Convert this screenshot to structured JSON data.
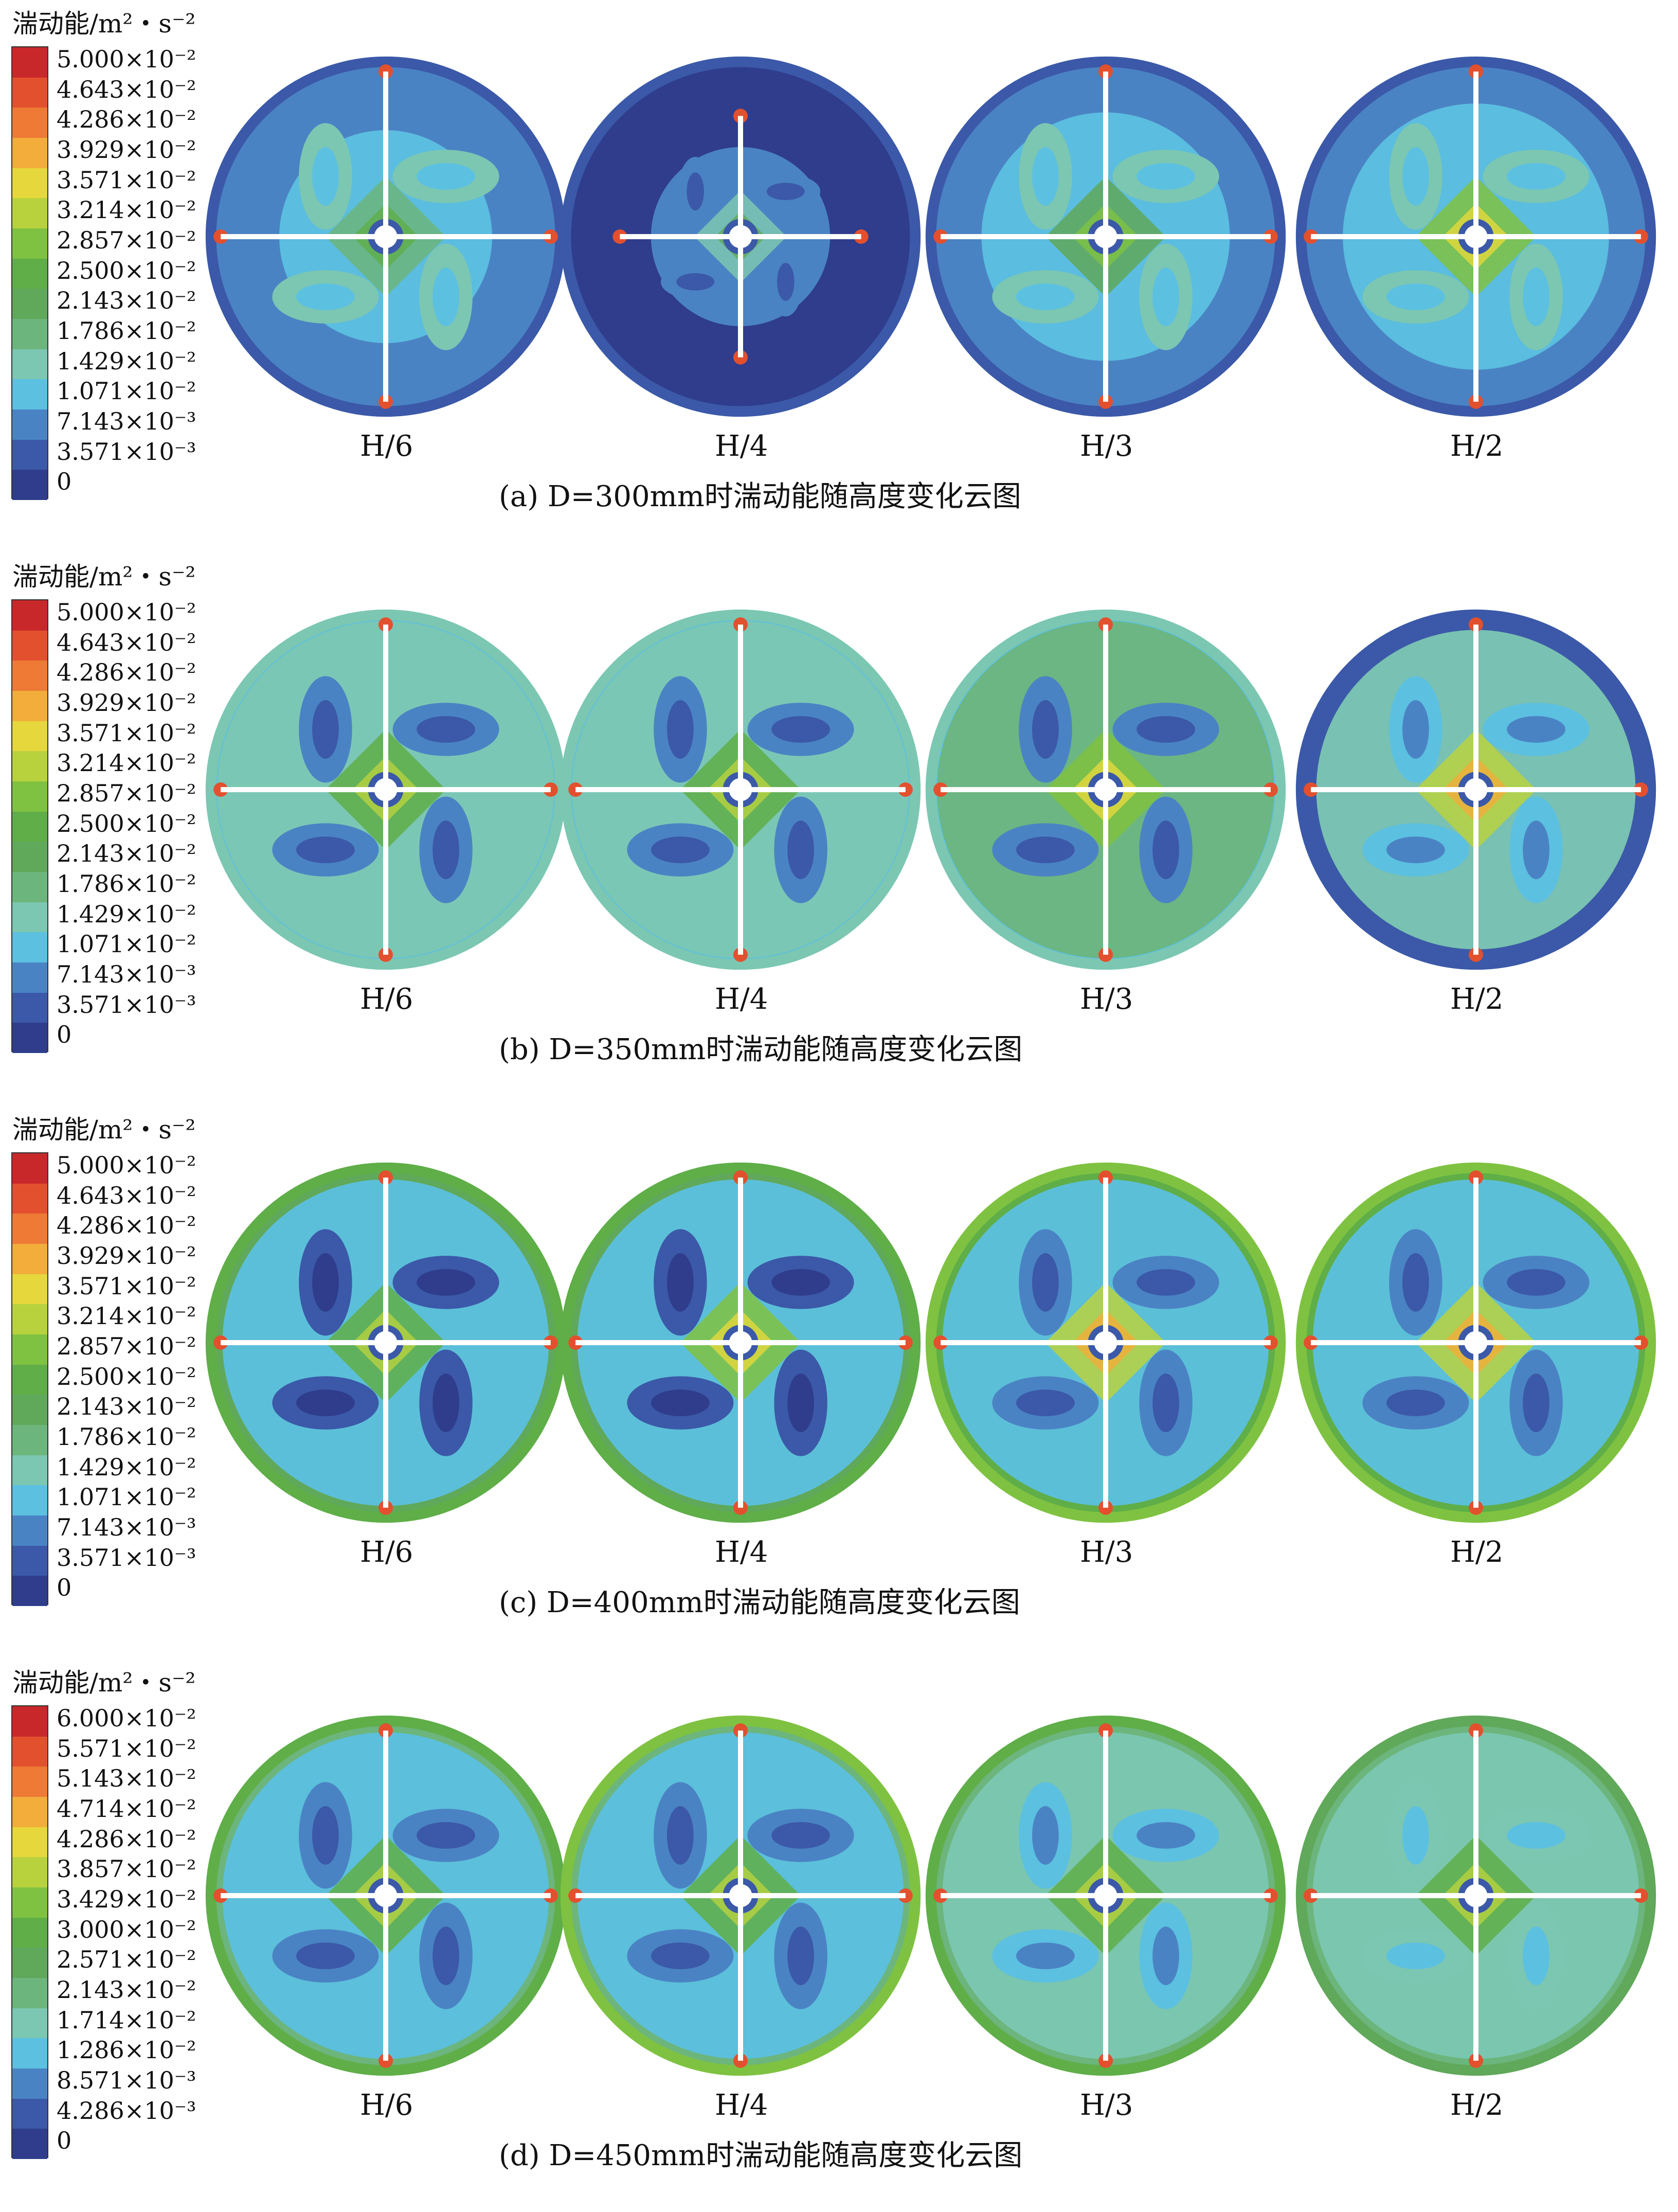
{
  "legend_title": "湍动能/m²・s⁻²",
  "panels": [
    {
      "caption": "(a) D=300mm时湍动能随高度变化云图",
      "legend_ticks": [
        "5.000×10⁻²",
        "4.643×10⁻²",
        "4.286×10⁻²",
        "3.929×10⁻²",
        "3.571×10⁻²",
        "3.214×10⁻²",
        "2.857×10⁻²",
        "2.500×10⁻²",
        "2.143×10⁻²",
        "1.786×10⁻²",
        "1.429×10⁻²",
        "1.071×10⁻²",
        "7.143×10⁻³",
        "3.571×10⁻³",
        "0"
      ],
      "heights": [
        "H/6",
        "H/4",
        "H/3",
        "H/2"
      ]
    },
    {
      "caption": "(b) D=350mm时湍动能随高度变化云图",
      "legend_ticks": [
        "5.000×10⁻²",
        "4.643×10⁻²",
        "4.286×10⁻²",
        "3.929×10⁻²",
        "3.571×10⁻²",
        "3.214×10⁻²",
        "2.857×10⁻²",
        "2.500×10⁻²",
        "2.143×10⁻²",
        "1.786×10⁻²",
        "1.429×10⁻²",
        "1.071×10⁻²",
        "7.143×10⁻³",
        "3.571×10⁻³",
        "0"
      ],
      "heights": [
        "H/6",
        "H/4",
        "H/3",
        "H/2"
      ]
    },
    {
      "caption": "(c) D=400mm时湍动能随高度变化云图",
      "legend_ticks": [
        "5.000×10⁻²",
        "4.643×10⁻²",
        "4.286×10⁻²",
        "3.929×10⁻²",
        "3.571×10⁻²",
        "3.214×10⁻²",
        "2.857×10⁻²",
        "2.500×10⁻²",
        "2.143×10⁻²",
        "1.786×10⁻²",
        "1.429×10⁻²",
        "1.071×10⁻²",
        "7.143×10⁻³",
        "3.571×10⁻³",
        "0"
      ],
      "heights": [
        "H/6",
        "H/4",
        "H/3",
        "H/2"
      ]
    },
    {
      "caption": "(d) D=450mm时湍动能随高度变化云图",
      "legend_ticks": [
        "6.000×10⁻²",
        "5.571×10⁻²",
        "5.143×10⁻²",
        "4.714×10⁻²",
        "4.286×10⁻²",
        "3.857×10⁻²",
        "3.429×10⁻²",
        "3.000×10⁻²",
        "2.571×10⁻²",
        "2.143×10⁻²",
        "1.714×10⁻²",
        "1.286×10⁻²",
        "8.571×10⁻³",
        "4.286×10⁻³",
        "0"
      ],
      "heights": [
        "H/6",
        "H/4",
        "H/3",
        "H/2"
      ]
    }
  ],
  "colors": {
    "scale": [
      "#c8282a",
      "#e3502e",
      "#ee7a35",
      "#f2ad3a",
      "#e6d83c",
      "#b8d23e",
      "#7fc241",
      "#5fae48",
      "#60a85a",
      "#6cb57c",
      "#7cc7b2",
      "#5cc0e0",
      "#4a83c4",
      "#3b59a8",
      "#2f3d8c"
    ],
    "blade": "#ffffff",
    "ring": "#3a55a4"
  }
}
